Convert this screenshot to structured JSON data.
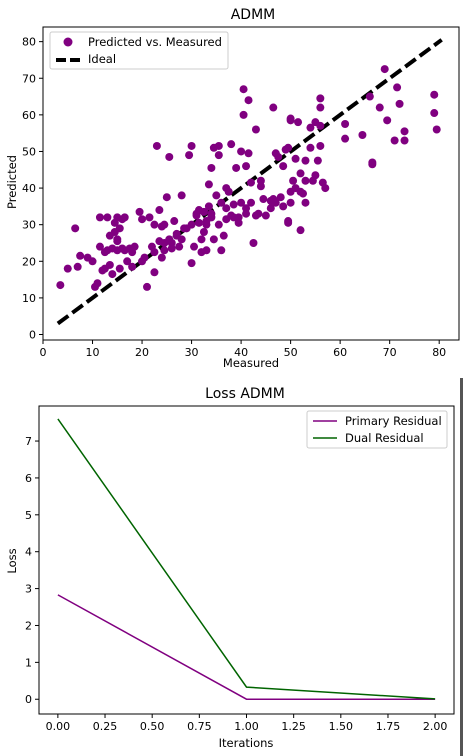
{
  "chart_data": [
    {
      "type": "scatter",
      "title": "ADMM",
      "xlabel": "Measured",
      "ylabel": "Predicted",
      "xlim": [
        0,
        84
      ],
      "ylim": [
        -1.5,
        84
      ],
      "xticks": [
        "0",
        "10",
        "20",
        "30",
        "40",
        "50",
        "60",
        "70",
        "80"
      ],
      "yticks": [
        "0",
        "10",
        "20",
        "30",
        "40",
        "50",
        "60",
        "70",
        "80"
      ],
      "legend_position": "top-left",
      "colors": {
        "points": "#800080",
        "ideal": "#000000"
      },
      "series": [
        {
          "name": "Predicted vs. Measured",
          "kind": "scatter",
          "points": [
            [
              3.5,
              13.5
            ],
            [
              5,
              18
            ],
            [
              6.5,
              29
            ],
            [
              7,
              18.5
            ],
            [
              7.5,
              21.5
            ],
            [
              9,
              21
            ],
            [
              10,
              20
            ],
            [
              10.5,
              13
            ],
            [
              11,
              14
            ],
            [
              11.5,
              24
            ],
            [
              11.5,
              32
            ],
            [
              12,
              17.5
            ],
            [
              12.5,
              18
            ],
            [
              12.5,
              22.5
            ],
            [
              13,
              23
            ],
            [
              13,
              32
            ],
            [
              13.5,
              27
            ],
            [
              13.5,
              19
            ],
            [
              14,
              16.5
            ],
            [
              14,
              23.5
            ],
            [
              14.5,
              30.5
            ],
            [
              14.5,
              28
            ],
            [
              15,
              23
            ],
            [
              15,
              25.5
            ],
            [
              15,
              26
            ],
            [
              15,
              32
            ],
            [
              15.5,
              29
            ],
            [
              15.5,
              18
            ],
            [
              16,
              31.5
            ],
            [
              16,
              23.5
            ],
            [
              16.5,
              32
            ],
            [
              16.5,
              23
            ],
            [
              17,
              20
            ],
            [
              17.5,
              23.5
            ],
            [
              18,
              22.5
            ],
            [
              18,
              18.5
            ],
            [
              18.5,
              24
            ],
            [
              19.5,
              33.5
            ],
            [
              20,
              31.5
            ],
            [
              20,
              20
            ],
            [
              20.5,
              21
            ],
            [
              21,
              13
            ],
            [
              21.5,
              32
            ],
            [
              22,
              24
            ],
            [
              22.5,
              17
            ],
            [
              22.5,
              22.5
            ],
            [
              22.5,
              30
            ],
            [
              23,
              51.5
            ],
            [
              23.5,
              34
            ],
            [
              23.5,
              25.5
            ],
            [
              24,
              29.5
            ],
            [
              24,
              21
            ],
            [
              24.5,
              23
            ],
            [
              24.5,
              30
            ],
            [
              24.5,
              25
            ],
            [
              25,
              37.5
            ],
            [
              25.5,
              26
            ],
            [
              25.5,
              48.5
            ],
            [
              26,
              23.5
            ],
            [
              26,
              25
            ],
            [
              26.5,
              31
            ],
            [
              27,
              27.5
            ],
            [
              27,
              27
            ],
            [
              27.5,
              24
            ],
            [
              28,
              38
            ],
            [
              28,
              26
            ],
            [
              28.5,
              29
            ],
            [
              29,
              29
            ],
            [
              29.5,
              49
            ],
            [
              30,
              30
            ],
            [
              30,
              51.5
            ],
            [
              30,
              19.5
            ],
            [
              30.5,
              24
            ],
            [
              31,
              32.5
            ],
            [
              31,
              33
            ],
            [
              31.5,
              34
            ],
            [
              31.5,
              30.5
            ],
            [
              32,
              22.5
            ],
            [
              32,
              26
            ],
            [
              32.5,
              28
            ],
            [
              32.5,
              33.5
            ],
            [
              33,
              23
            ],
            [
              33,
              31
            ],
            [
              33,
              30
            ],
            [
              33.5,
              41
            ],
            [
              33.5,
              35
            ],
            [
              34,
              45.5
            ],
            [
              34,
              33
            ],
            [
              34,
              32
            ],
            [
              34.5,
              51
            ],
            [
              34.5,
              26
            ],
            [
              35,
              38
            ],
            [
              35.5,
              49
            ],
            [
              35.5,
              30
            ],
            [
              35.5,
              51.5
            ],
            [
              36,
              36
            ],
            [
              36,
              23
            ],
            [
              36.5,
              27
            ],
            [
              37,
              34.5
            ],
            [
              37,
              40
            ],
            [
              37,
              31.5
            ],
            [
              37.5,
              39
            ],
            [
              38,
              32.5
            ],
            [
              38,
              52
            ],
            [
              38.5,
              35.5
            ],
            [
              38.5,
              32
            ],
            [
              39,
              45.5
            ],
            [
              39.5,
              32
            ],
            [
              39.5,
              30.5
            ],
            [
              40,
              50
            ],
            [
              40,
              36
            ],
            [
              40.5,
              60
            ],
            [
              40.5,
              67
            ],
            [
              41,
              34.5
            ],
            [
              41,
              33
            ],
            [
              41,
              46
            ],
            [
              41.5,
              64
            ],
            [
              41.5,
              49.5
            ],
            [
              42,
              36
            ],
            [
              42,
              41.5
            ],
            [
              42.5,
              25
            ],
            [
              43,
              56
            ],
            [
              43,
              32.5
            ],
            [
              43.5,
              33
            ],
            [
              44,
              40.5
            ],
            [
              44,
              42
            ],
            [
              44.5,
              37
            ],
            [
              45,
              32.5
            ],
            [
              46,
              36.5
            ],
            [
              46,
              34.5
            ],
            [
              46.5,
              37
            ],
            [
              46.5,
              62
            ],
            [
              47,
              49.5
            ],
            [
              47,
              36
            ],
            [
              47.5,
              48.5
            ],
            [
              48,
              37.5
            ],
            [
              48.5,
              46
            ],
            [
              48.5,
              35
            ],
            [
              49,
              50.5
            ],
            [
              49.5,
              51
            ],
            [
              49.5,
              31
            ],
            [
              49.5,
              30.5
            ],
            [
              50,
              36
            ],
            [
              50,
              39
            ],
            [
              50,
              58.5
            ],
            [
              50,
              59
            ],
            [
              50.5,
              42
            ],
            [
              51,
              40
            ],
            [
              51,
              48
            ],
            [
              51.5,
              58
            ],
            [
              52,
              28.5
            ],
            [
              52,
              44
            ],
            [
              52,
              39
            ],
            [
              52.5,
              38.5
            ],
            [
              53,
              36
            ],
            [
              53,
              42
            ],
            [
              53,
              47.5
            ],
            [
              54,
              51
            ],
            [
              54,
              56.5
            ],
            [
              54.5,
              42
            ],
            [
              55,
              58
            ],
            [
              55,
              43.5
            ],
            [
              55.5,
              47.5
            ],
            [
              56,
              51.5
            ],
            [
              56,
              57
            ],
            [
              56,
              62
            ],
            [
              56,
              64.5
            ],
            [
              56.5,
              41.5
            ],
            [
              57,
              40
            ],
            [
              61,
              53.5
            ],
            [
              61,
              57.5
            ],
            [
              64.5,
              54.5
            ],
            [
              66,
              65
            ],
            [
              66.5,
              46.5
            ],
            [
              66.5,
              47
            ],
            [
              68,
              62
            ],
            [
              69,
              72.5
            ],
            [
              69.5,
              58.5
            ],
            [
              71,
              53
            ],
            [
              71.5,
              67.5
            ],
            [
              72,
              63
            ],
            [
              73,
              55.5
            ],
            [
              73,
              53
            ],
            [
              79,
              65.5
            ],
            [
              79,
              60.5
            ],
            [
              79.5,
              56
            ]
          ]
        },
        {
          "name": "Ideal",
          "kind": "line",
          "style": "dashed",
          "points": [
            [
              3,
              3
            ],
            [
              80.5,
              80.5
            ]
          ]
        }
      ]
    },
    {
      "type": "line",
      "title": "Loss ADMM",
      "xlabel": "Iterations",
      "ylabel": "Loss",
      "xlim": [
        -0.1,
        2.1
      ],
      "ylim": [
        -0.4,
        7.95
      ],
      "xticks": [
        "0.00",
        "0.25",
        "0.50",
        "0.75",
        "1.00",
        "1.25",
        "1.50",
        "1.75",
        "2.00"
      ],
      "yticks": [
        "0",
        "1",
        "2",
        "3",
        "4",
        "5",
        "6",
        "7"
      ],
      "legend_position": "top-right",
      "x": [
        0,
        1,
        2
      ],
      "series": [
        {
          "name": "Primary Residual",
          "color": "#800080",
          "values": [
            2.83,
            0.0,
            0.0
          ]
        },
        {
          "name": "Dual Residual",
          "color": "#006400",
          "values": [
            7.6,
            0.33,
            0.01
          ]
        }
      ]
    }
  ]
}
